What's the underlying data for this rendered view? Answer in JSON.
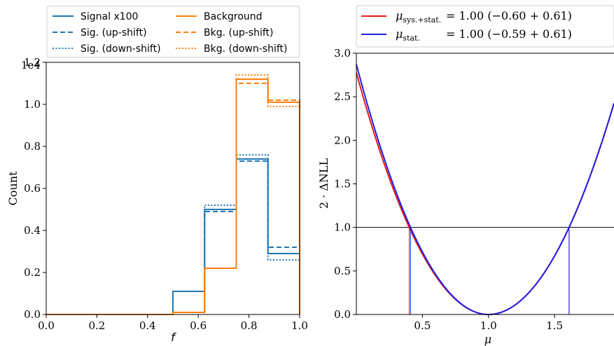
{
  "chart_data": [
    {
      "type": "step",
      "title": "",
      "xlabel": "f",
      "ylabel": "Count",
      "y_scale_label": "1e4",
      "xlim": [
        0.0,
        1.0
      ],
      "ylim": [
        0.0,
        1.2
      ],
      "xticks": [
        0.0,
        0.2,
        0.4,
        0.6,
        0.8,
        1.0
      ],
      "xtick_labels": [
        "0.0",
        "0.2",
        "0.4",
        "0.6",
        "0.8",
        "1.0"
      ],
      "yticks": [
        0.0,
        0.2,
        0.4,
        0.6,
        0.8,
        1.0,
        1.2
      ],
      "ytick_labels": [
        "0.0",
        "0.2",
        "0.4",
        "0.6",
        "0.8",
        "1.0",
        "1.2"
      ],
      "bin_edges": [
        0.0,
        0.125,
        0.25,
        0.375,
        0.5,
        0.625,
        0.75,
        0.875,
        1.0
      ],
      "legend": {
        "placement": "top",
        "columns": 2
      },
      "series": [
        {
          "name": "Signal x100",
          "color": "#1f77b4",
          "dash": "solid",
          "values": [
            0,
            0,
            0,
            0,
            0.11,
            0.5,
            0.74,
            0.29
          ]
        },
        {
          "name": "Sig. (up-shift)",
          "color": "#1f77b4",
          "dash": "dashed",
          "values": [
            0,
            0,
            0,
            0,
            0.11,
            0.49,
            0.73,
            0.32
          ]
        },
        {
          "name": "Sig. (down-shift)",
          "color": "#1f77b4",
          "dash": "dotted",
          "values": [
            0,
            0,
            0,
            0,
            0.11,
            0.52,
            0.76,
            0.26
          ]
        },
        {
          "name": "Background",
          "color": "#ff7f0e",
          "dash": "solid",
          "values": [
            0,
            0,
            0,
            0,
            0.01,
            0.22,
            1.12,
            1.01
          ]
        },
        {
          "name": "Bkg. (up-shift)",
          "color": "#ff7f0e",
          "dash": "dashed",
          "values": [
            0,
            0,
            0,
            0,
            0.01,
            0.22,
            1.1,
            1.02
          ]
        },
        {
          "name": "Bkg. (down-shift)",
          "color": "#ff7f0e",
          "dash": "dotted",
          "values": [
            0,
            0,
            0,
            0,
            0.01,
            0.22,
            1.14,
            0.99
          ]
        }
      ]
    },
    {
      "type": "line",
      "title": "",
      "xlabel": "μ",
      "ylabel": "2 · ΔNLL",
      "xlim": [
        0.0,
        1.95
      ],
      "ylim": [
        0.0,
        3.0
      ],
      "xticks": [
        0.5,
        1.0,
        1.5
      ],
      "xtick_labels": [
        "0.5",
        "1.0",
        "1.5"
      ],
      "yticks": [
        0.0,
        0.5,
        1.0,
        1.5,
        2.0,
        2.5,
        3.0
      ],
      "ytick_labels": [
        "0.0",
        "0.5",
        "1.0",
        "1.5",
        "2.0",
        "2.5",
        "3.0"
      ],
      "hlines": [
        1.0,
        3.0
      ],
      "legend": {
        "placement": "top"
      },
      "series": [
        {
          "name_main": "μ",
          "name_sub": "sys.+stat.",
          "value_text": "= 1.00 (−0.60  + 0.61)",
          "color": "#e41a1c",
          "best_fit": 1.0,
          "err_down": 0.6,
          "err_up": 0.61
        },
        {
          "name_main": "μ",
          "name_sub": "stat.",
          "value_text": "= 1.00 (−0.59  + 0.61)",
          "color": "#1f1fe8",
          "best_fit": 1.0,
          "err_down": 0.59,
          "err_up": 0.61
        }
      ]
    }
  ]
}
